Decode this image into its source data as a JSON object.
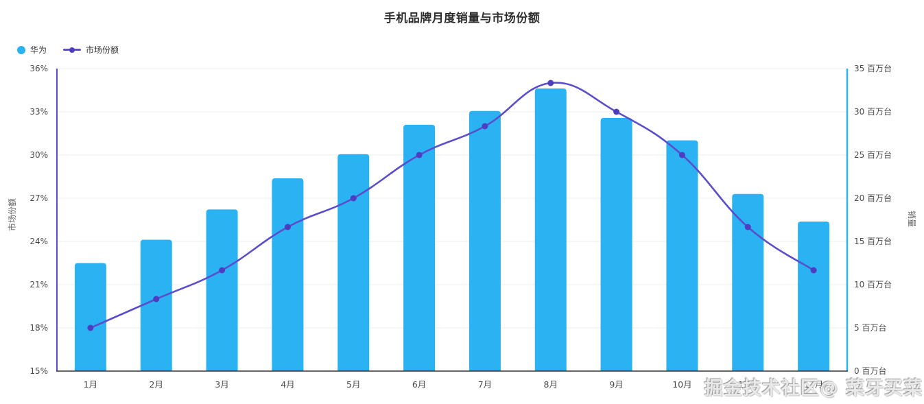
{
  "chart": {
    "title": "手机品牌月度销量与市场份额",
    "legend": [
      "华为",
      "市场份额"
    ],
    "colors": {
      "bar": "#2ab2f2",
      "line": "#5a4ecb",
      "point": "#4e3cc2",
      "left_axis_line": "#5a4ecb",
      "right_axis_line": "#2ab2f2",
      "grid": "#ececec",
      "x_axis_line": "#333333",
      "tick_text": "#4a4a4a",
      "axis_name_text": "#666666"
    }
  },
  "chart_data": {
    "type": "bar",
    "title": "手机品牌月度销量与市场份额",
    "categories": [
      "1月",
      "2月",
      "3月",
      "4月",
      "5月",
      "6月",
      "7月",
      "8月",
      "9月",
      "10月",
      "11月",
      "12月"
    ],
    "series": [
      {
        "name": "华为",
        "type": "bar",
        "axis": "right",
        "unit": "百万台",
        "values": [
          12.5,
          15.2,
          18.7,
          22.3,
          25.1,
          28.5,
          30.1,
          32.7,
          29.3,
          26.7,
          20.5,
          17.3
        ]
      },
      {
        "name": "市场份额",
        "type": "line",
        "axis": "left",
        "unit": "%",
        "smooth": true,
        "values": [
          18,
          20,
          22,
          25,
          27,
          30,
          32,
          35,
          33,
          30,
          25,
          22
        ]
      }
    ],
    "left_axis": {
      "name": "市场份额",
      "min": 15,
      "max": 36,
      "ticks": [
        "36%",
        "33%",
        "30%",
        "27%",
        "24%",
        "21%",
        "18%",
        "15%"
      ]
    },
    "right_axis": {
      "name": "销量",
      "min": 0,
      "max": 35,
      "ticks": [
        "35 百万台",
        "30 百万台",
        "25 百万台",
        "20 百万台",
        "15 百万台",
        "10 百万台",
        "5 百万台",
        "0 百万台"
      ]
    },
    "grid": true,
    "legend_position": "top-left"
  },
  "watermark": {
    "text": "掘金技术社区@ 菜牙买菜"
  }
}
